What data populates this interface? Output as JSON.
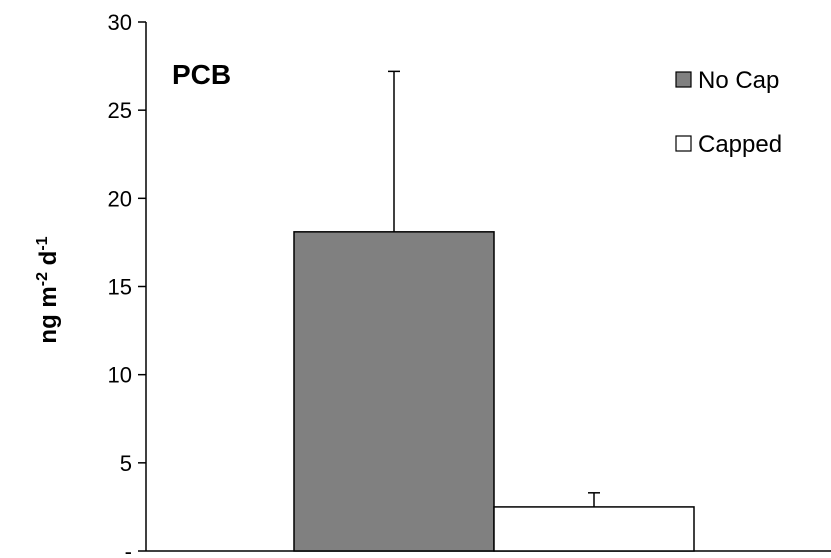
{
  "chart_data": {
    "type": "bar",
    "title": "PCB",
    "ylabel_parts": [
      "ng m",
      "-2",
      " d",
      "-1"
    ],
    "ylim": [
      0,
      30
    ],
    "yticks": [
      0,
      5,
      10,
      15,
      20,
      25,
      30
    ],
    "ytick_labels": [
      "-",
      "5",
      "10",
      "15",
      "20",
      "25",
      "30"
    ],
    "grid": false,
    "legend_position": "top-right",
    "series": [
      {
        "name": "No Cap",
        "value": 18.1,
        "error_upper": 9.1,
        "color": "#808080"
      },
      {
        "name": "Capped",
        "value": 2.5,
        "error_upper": 0.8,
        "color": "#ffffff"
      }
    ]
  }
}
